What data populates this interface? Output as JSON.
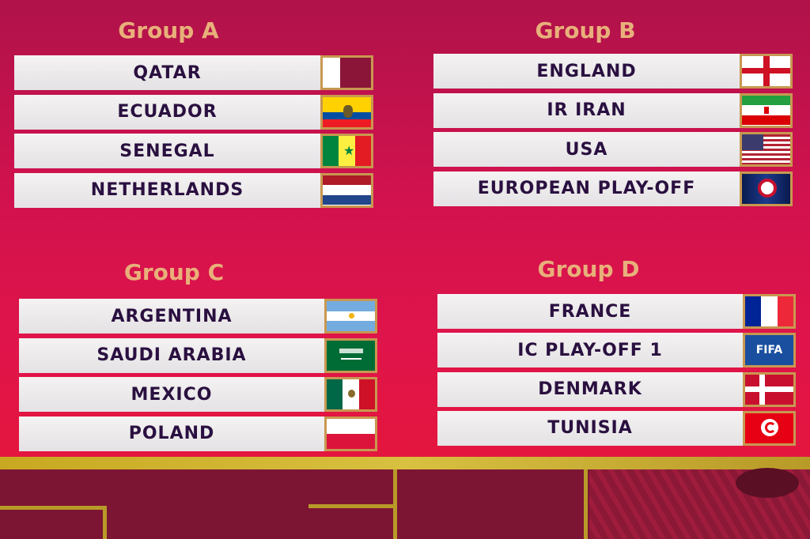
{
  "groups": [
    {
      "title": "Group A",
      "teams": [
        {
          "name": "QATAR",
          "flag": "qatar-flag"
        },
        {
          "name": "ECUADOR",
          "flag": "ecuador-flag"
        },
        {
          "name": "SENEGAL",
          "flag": "senegal-flag"
        },
        {
          "name": "NETHERLANDS",
          "flag": "netherlands-flag"
        }
      ]
    },
    {
      "title": "Group B",
      "teams": [
        {
          "name": "ENGLAND",
          "flag": "england-flag"
        },
        {
          "name": "IR IRAN",
          "flag": "iran-flag"
        },
        {
          "name": "USA",
          "flag": "usa-flag"
        },
        {
          "name": "EUROPEAN PLAY-OFF",
          "flag": "uefa-logo"
        }
      ]
    },
    {
      "title": "Group C",
      "teams": [
        {
          "name": "ARGENTINA",
          "flag": "argentina-flag"
        },
        {
          "name": "SAUDI ARABIA",
          "flag": "saudi-arabia-flag"
        },
        {
          "name": "MEXICO",
          "flag": "mexico-flag"
        },
        {
          "name": "POLAND",
          "flag": "poland-flag"
        }
      ]
    },
    {
      "title": "Group D",
      "teams": [
        {
          "name": "FRANCE",
          "flag": "france-flag"
        },
        {
          "name": "IC PLAY-OFF 1",
          "flag": "fifa-logo"
        },
        {
          "name": "DENMARK",
          "flag": "denmark-flag"
        },
        {
          "name": "TUNISIA",
          "flag": "tunisia-flag"
        }
      ]
    }
  ],
  "fifa_logo_text": "FIFA",
  "colors": {
    "board": "#d0124e",
    "name_text": "#2a1040",
    "title_text": "#e8b07a",
    "gold": "#c8a820"
  }
}
